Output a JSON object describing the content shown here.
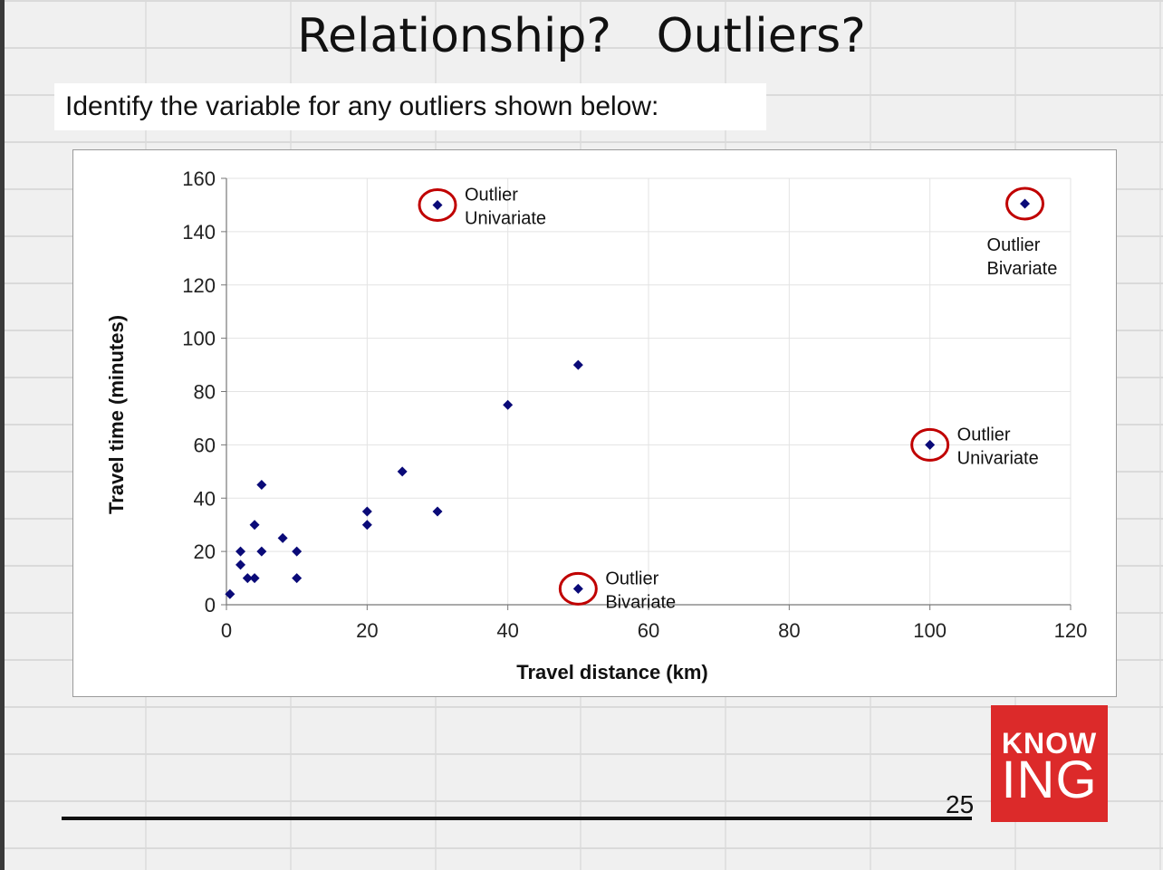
{
  "slide": {
    "title": "Relationship?   Outliers?",
    "subtitle": "Identify the variable for any outliers shown below:",
    "page_number": "25",
    "logo_top": "KNOW",
    "logo_bottom": "ING"
  },
  "colors": {
    "marker": "#0a0a78",
    "circle": "#c00000",
    "logo": "#dc2a2a",
    "grid": "#e3e3e3"
  },
  "chart_data": {
    "type": "scatter",
    "title": "",
    "xlabel": "Travel distance (km)",
    "ylabel": "Travel time (minutes)",
    "xlim": [
      0,
      120
    ],
    "ylim": [
      0,
      160
    ],
    "xticks": [
      0,
      20,
      40,
      60,
      80,
      100,
      120
    ],
    "yticks": [
      0,
      20,
      40,
      60,
      80,
      100,
      120,
      140,
      160
    ],
    "grid": true,
    "legend": "none",
    "points": [
      {
        "x": 0.5,
        "y": 4
      },
      {
        "x": 2,
        "y": 20
      },
      {
        "x": 2,
        "y": 15
      },
      {
        "x": 3,
        "y": 10
      },
      {
        "x": 4,
        "y": 10
      },
      {
        "x": 4,
        "y": 30
      },
      {
        "x": 5,
        "y": 45
      },
      {
        "x": 5,
        "y": 20
      },
      {
        "x": 8,
        "y": 25
      },
      {
        "x": 10,
        "y": 20
      },
      {
        "x": 10,
        "y": 10
      },
      {
        "x": 20,
        "y": 35
      },
      {
        "x": 20,
        "y": 30
      },
      {
        "x": 25,
        "y": 50
      },
      {
        "x": 30,
        "y": 35
      },
      {
        "x": 40,
        "y": 75
      },
      {
        "x": 50,
        "y": 90
      },
      {
        "x": 30,
        "y": 150
      },
      {
        "x": 113.5,
        "y": 150.5
      },
      {
        "x": 100,
        "y": 60
      },
      {
        "x": 50,
        "y": 6
      }
    ],
    "annotations": [
      {
        "x": 30,
        "y": 150,
        "line1": "Outlier",
        "line2": "Univariate",
        "position": "right"
      },
      {
        "x": 113.5,
        "y": 150.5,
        "line1": "Outlier",
        "line2": "Bivariate",
        "position": "below"
      },
      {
        "x": 100,
        "y": 60,
        "line1": "Outlier",
        "line2": "Univariate",
        "position": "right"
      },
      {
        "x": 50,
        "y": 6,
        "line1": "Outlier",
        "line2": "Bivariate",
        "position": "right"
      }
    ]
  }
}
